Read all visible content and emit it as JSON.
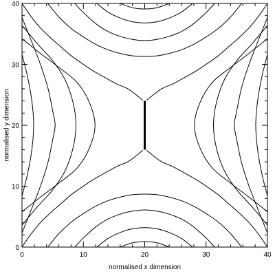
{
  "chart_data": {
    "type": "line",
    "title": "",
    "xlabel": "normalised x dimension",
    "ylabel": "normalised y dimension",
    "xlim": [
      0,
      40
    ],
    "ylim": [
      0,
      40
    ],
    "x_ticks": [
      0,
      10,
      20,
      30,
      40
    ],
    "y_ticks": [
      0,
      10,
      20,
      30,
      40
    ],
    "x_tick_labels": [
      "0",
      "10",
      "20",
      "30",
      "40"
    ],
    "y_tick_labels": [
      "0",
      "10",
      "20",
      "30",
      "40"
    ],
    "grid": false,
    "line_color": "#000000",
    "current_sheet": {
      "x": [
        20,
        20
      ],
      "y": [
        16,
        24
      ]
    },
    "series": [
      {
        "x": [
          20.3,
          22.6,
          24.6,
          26.6,
          28.5,
          30.3,
          32.1,
          33.8,
          35.5,
          37.2,
          38.7,
          40.0
        ],
        "y": [
          24.1,
          25.9,
          26.8,
          27.9,
          29.0,
          30.2,
          31.5,
          33.0,
          34.5,
          36.2,
          38.1,
          40.0
        ]
      },
      {
        "x": [
          19.7,
          17.4,
          15.4,
          13.4,
          11.5,
          9.7,
          7.9,
          6.2,
          4.5,
          2.8,
          1.3,
          0.0
        ],
        "y": [
          24.1,
          25.9,
          26.8,
          27.9,
          29.0,
          30.2,
          31.5,
          33.0,
          34.5,
          36.2,
          38.1,
          40.0
        ]
      },
      {
        "x": [
          20.3,
          22.6,
          24.6,
          26.6,
          28.5,
          30.3,
          32.1,
          33.8,
          35.5,
          37.2,
          38.7,
          40.0
        ],
        "y": [
          15.9,
          14.1,
          13.2,
          12.1,
          11.0,
          9.8,
          8.5,
          7.0,
          5.5,
          3.8,
          1.9,
          0.0
        ]
      },
      {
        "x": [
          19.7,
          17.4,
          15.4,
          13.4,
          11.5,
          9.7,
          7.9,
          6.2,
          4.5,
          2.8,
          1.3,
          0.0
        ],
        "y": [
          15.9,
          14.1,
          13.2,
          12.1,
          11.0,
          9.8,
          8.5,
          7.0,
          5.5,
          3.8,
          1.9,
          0.0
        ]
      },
      {
        "x": [
          4.2,
          6,
          8,
          10,
          12,
          14,
          16,
          18,
          20,
          22,
          24,
          26,
          28,
          30,
          32,
          34,
          35.8
        ],
        "y": [
          40.0,
          37.8,
          35.9,
          34.5,
          33.3,
          32.4,
          31.8,
          31.4,
          31.3,
          31.4,
          31.8,
          32.4,
          33.3,
          34.5,
          35.9,
          37.8,
          40.0
        ]
      },
      {
        "x": [
          8.6,
          10,
          12,
          14,
          16,
          18,
          20,
          22,
          24,
          26,
          28,
          30,
          31.4
        ],
        "y": [
          40.0,
          38.5,
          36.7,
          35.4,
          34.6,
          34.1,
          33.9,
          34.1,
          34.6,
          35.4,
          36.7,
          38.5,
          40.0
        ]
      },
      {
        "x": [
          12.2,
          14,
          16,
          18,
          20,
          22,
          24,
          26,
          27.8
        ],
        "y": [
          40.0,
          38.6,
          37.6,
          37.0,
          36.8,
          37.0,
          37.6,
          38.6,
          40.0
        ]
      },
      {
        "x": [
          16.0,
          18,
          20,
          22,
          24.0
        ],
        "y": [
          40.0,
          39.3,
          39.1,
          39.3,
          40.0
        ]
      },
      {
        "x": [
          4.2,
          6,
          8,
          10,
          12,
          14,
          16,
          18,
          20,
          22,
          24,
          26,
          28,
          30,
          32,
          34,
          35.8
        ],
        "y": [
          0.0,
          2.2,
          4.1,
          5.5,
          6.7,
          7.6,
          8.2,
          8.6,
          8.7,
          8.6,
          8.2,
          7.6,
          6.7,
          5.5,
          4.1,
          2.2,
          0.0
        ]
      },
      {
        "x": [
          8.6,
          10,
          12,
          14,
          16,
          18,
          20,
          22,
          24,
          26,
          28,
          30,
          31.4
        ],
        "y": [
          0.0,
          1.5,
          3.3,
          4.6,
          5.4,
          5.9,
          6.1,
          5.9,
          5.4,
          4.6,
          3.3,
          1.5,
          0.0
        ]
      },
      {
        "x": [
          12.2,
          14,
          16,
          18,
          20,
          22,
          24,
          26,
          27.8
        ],
        "y": [
          0.0,
          1.4,
          2.4,
          3.0,
          3.2,
          3.0,
          2.4,
          1.4,
          0.0
        ]
      },
      {
        "x": [
          16.0,
          18,
          20,
          22,
          24.0
        ],
        "y": [
          0.0,
          0.7,
          0.9,
          0.7,
          0.0
        ]
      },
      {
        "x": [
          0.0,
          1.5,
          3.0,
          4.2,
          5.0,
          5.4,
          5.0,
          4.2,
          3.0,
          1.5,
          0.0
        ],
        "y": [
          37.7,
          33.9,
          30.0,
          26.2,
          22.4,
          20.0,
          17.6,
          13.8,
          10.0,
          6.1,
          2.3
        ]
      },
      {
        "x": [
          0.0,
          2.5,
          5.0,
          7.0,
          8.3,
          8.8,
          8.3,
          7.0,
          5.0,
          2.5,
          0.0
        ],
        "y": [
          36.4,
          33.4,
          30.6,
          27.5,
          23.8,
          20.0,
          16.2,
          12.5,
          9.4,
          6.6,
          3.6
        ]
      },
      {
        "x": [
          0.0,
          3,
          6,
          9,
          11.0,
          11.9,
          11.0,
          9,
          6,
          3,
          0.0
        ],
        "y": [
          34.2,
          31.8,
          29.5,
          27.0,
          23.7,
          20.0,
          16.3,
          13.0,
          10.5,
          8.2,
          5.8
        ]
      },
      {
        "x": [
          0.0,
          0.9,
          1.6,
          1.9,
          1.6,
          0.9,
          0.0
        ],
        "y": [
          31.6,
          28.0,
          24.0,
          20.0,
          16.0,
          12.0,
          8.4
        ]
      },
      {
        "x": [
          40.0,
          38.5,
          37.0,
          35.8,
          35.0,
          34.6,
          35.0,
          35.8,
          37.0,
          38.5,
          40.0
        ],
        "y": [
          37.7,
          33.9,
          30.0,
          26.2,
          22.4,
          20.0,
          17.6,
          13.8,
          10.0,
          6.1,
          2.3
        ]
      },
      {
        "x": [
          40.0,
          37.5,
          35.0,
          33.0,
          31.7,
          31.2,
          31.7,
          33.0,
          35.0,
          37.5,
          40.0
        ],
        "y": [
          36.4,
          33.4,
          30.6,
          27.5,
          23.8,
          20.0,
          16.2,
          12.5,
          9.4,
          6.6,
          3.6
        ]
      },
      {
        "x": [
          40.0,
          37,
          34,
          31,
          29.0,
          28.1,
          29.0,
          31,
          34,
          37,
          40.0
        ],
        "y": [
          34.2,
          31.8,
          29.5,
          27.0,
          23.7,
          20.0,
          16.3,
          13.0,
          10.5,
          8.2,
          5.8
        ]
      },
      {
        "x": [
          40.0,
          39.1,
          38.4,
          38.1,
          38.4,
          39.1,
          40.0
        ],
        "y": [
          31.6,
          28.0,
          24.0,
          20.0,
          16.0,
          12.0,
          8.4
        ]
      }
    ]
  }
}
